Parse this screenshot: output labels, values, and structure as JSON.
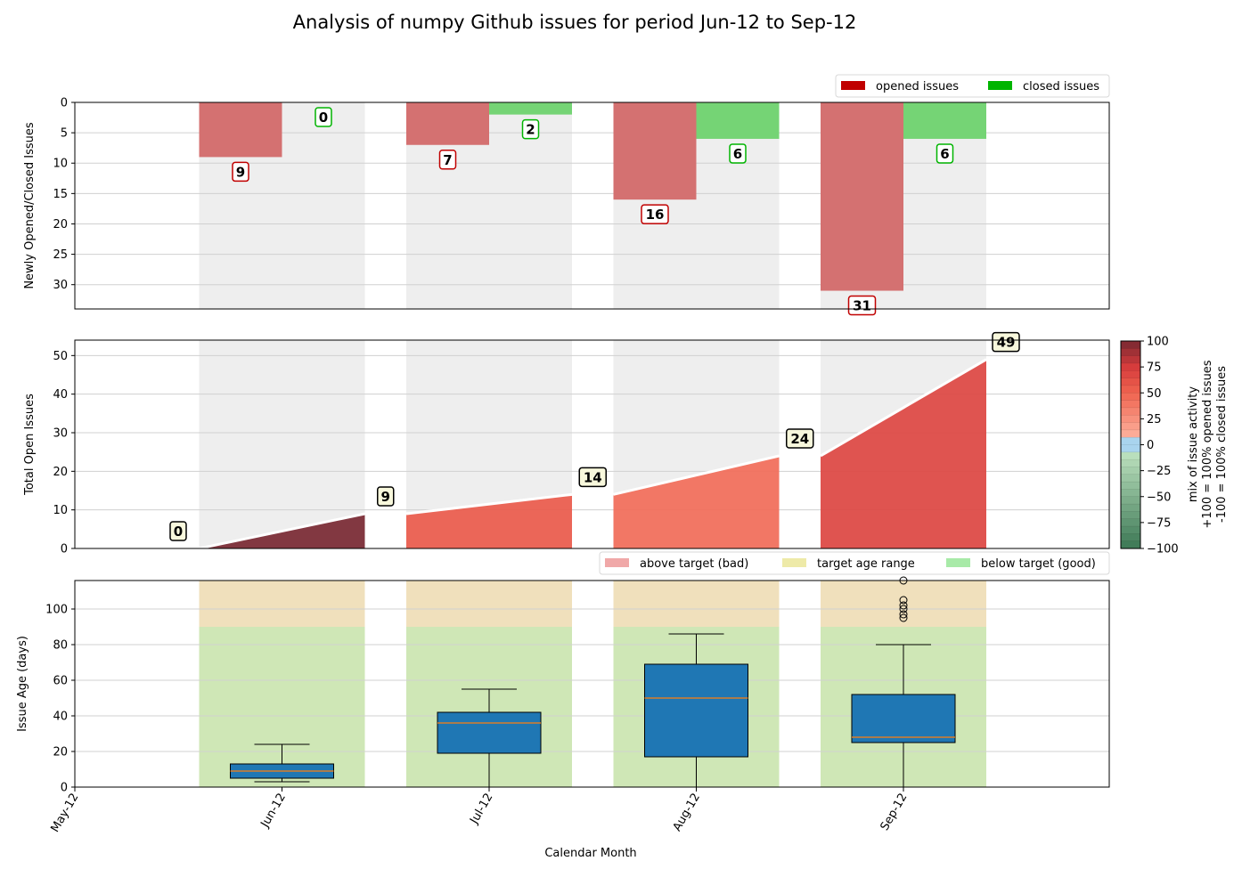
{
  "title": "Analysis of numpy Github issues for period Jun-12 to Sep-12",
  "xlabel": "Calendar Month",
  "months": [
    "May-12",
    "Jun-12",
    "Jul-12",
    "Aug-12",
    "Sep-12"
  ],
  "colors": {
    "opened": "#c00000",
    "closed": "#00b400",
    "opened_bar": "#d47171",
    "closed_bar": "#75d475",
    "shade": "#eeeeee",
    "above_target": "#f0e0bc",
    "below_target": "#cfe7b6",
    "box_fill": "#1f77b4",
    "median": "#ff7f0e"
  },
  "chart_data": [
    {
      "type": "bar",
      "ylabel": "Newly Opened/Closed Issues",
      "ylim": [
        34,
        0
      ],
      "yticks": [
        0,
        5,
        10,
        15,
        20,
        25,
        30
      ],
      "y_inverted": true,
      "grid": true,
      "legend_position": "top-right",
      "categories": [
        "Jun-12",
        "Jul-12",
        "Aug-12",
        "Sep-12"
      ],
      "series": [
        {
          "name": "opened issues",
          "values": [
            9,
            7,
            16,
            31
          ]
        },
        {
          "name": "closed issues",
          "values": [
            0,
            2,
            6,
            6
          ]
        }
      ]
    },
    {
      "type": "area",
      "ylabel": "Total Open Issues",
      "ylim": [
        0,
        54
      ],
      "yticks": [
        0,
        10,
        20,
        30,
        40,
        50
      ],
      "grid": true,
      "points_labels": [
        0,
        9,
        14,
        24,
        49
      ],
      "segments": [
        {
          "month": "Jun-12",
          "start": 0,
          "end": 9,
          "activity": 100
        },
        {
          "month": "Jul-12",
          "start": 9,
          "end": 14,
          "activity": 56
        },
        {
          "month": "Aug-12",
          "start": 14,
          "end": 24,
          "activity": 45
        },
        {
          "month": "Sep-12",
          "start": 24,
          "end": 49,
          "activity": 68
        }
      ],
      "colorbar": {
        "label_lines": [
          "mix of issue activity",
          "+100 = 100% opened issues",
          "-100 = 100% closed issues"
        ],
        "ticks": [
          "100",
          "75",
          "50",
          "25",
          "0",
          "−25",
          "−50",
          "−75",
          "−100"
        ],
        "range": [
          -100,
          100
        ]
      }
    },
    {
      "type": "box",
      "ylabel": "Issue Age (days)",
      "ylim": [
        0,
        116
      ],
      "yticks": [
        0,
        20,
        40,
        60,
        80,
        100
      ],
      "grid": true,
      "target_age_days": 90,
      "legend_position": "top-right",
      "legend": [
        "above target (bad)",
        "target age range",
        "below target (good)"
      ],
      "boxes": [
        {
          "month": "Jun-12",
          "min": 3,
          "q1": 5,
          "median": 9,
          "q3": 13,
          "max": 24,
          "outliers": []
        },
        {
          "month": "Jul-12",
          "min": 0,
          "q1": 19,
          "median": 36,
          "q3": 42,
          "max": 55,
          "outliers": []
        },
        {
          "month": "Aug-12",
          "min": 0,
          "q1": 17,
          "median": 50,
          "q3": 69,
          "max": 86,
          "outliers": []
        },
        {
          "month": "Sep-12",
          "min": 0,
          "q1": 25,
          "median": 28,
          "q3": 52,
          "max": 80,
          "outliers": [
            95,
            97,
            100,
            102,
            105,
            116
          ]
        }
      ]
    }
  ]
}
